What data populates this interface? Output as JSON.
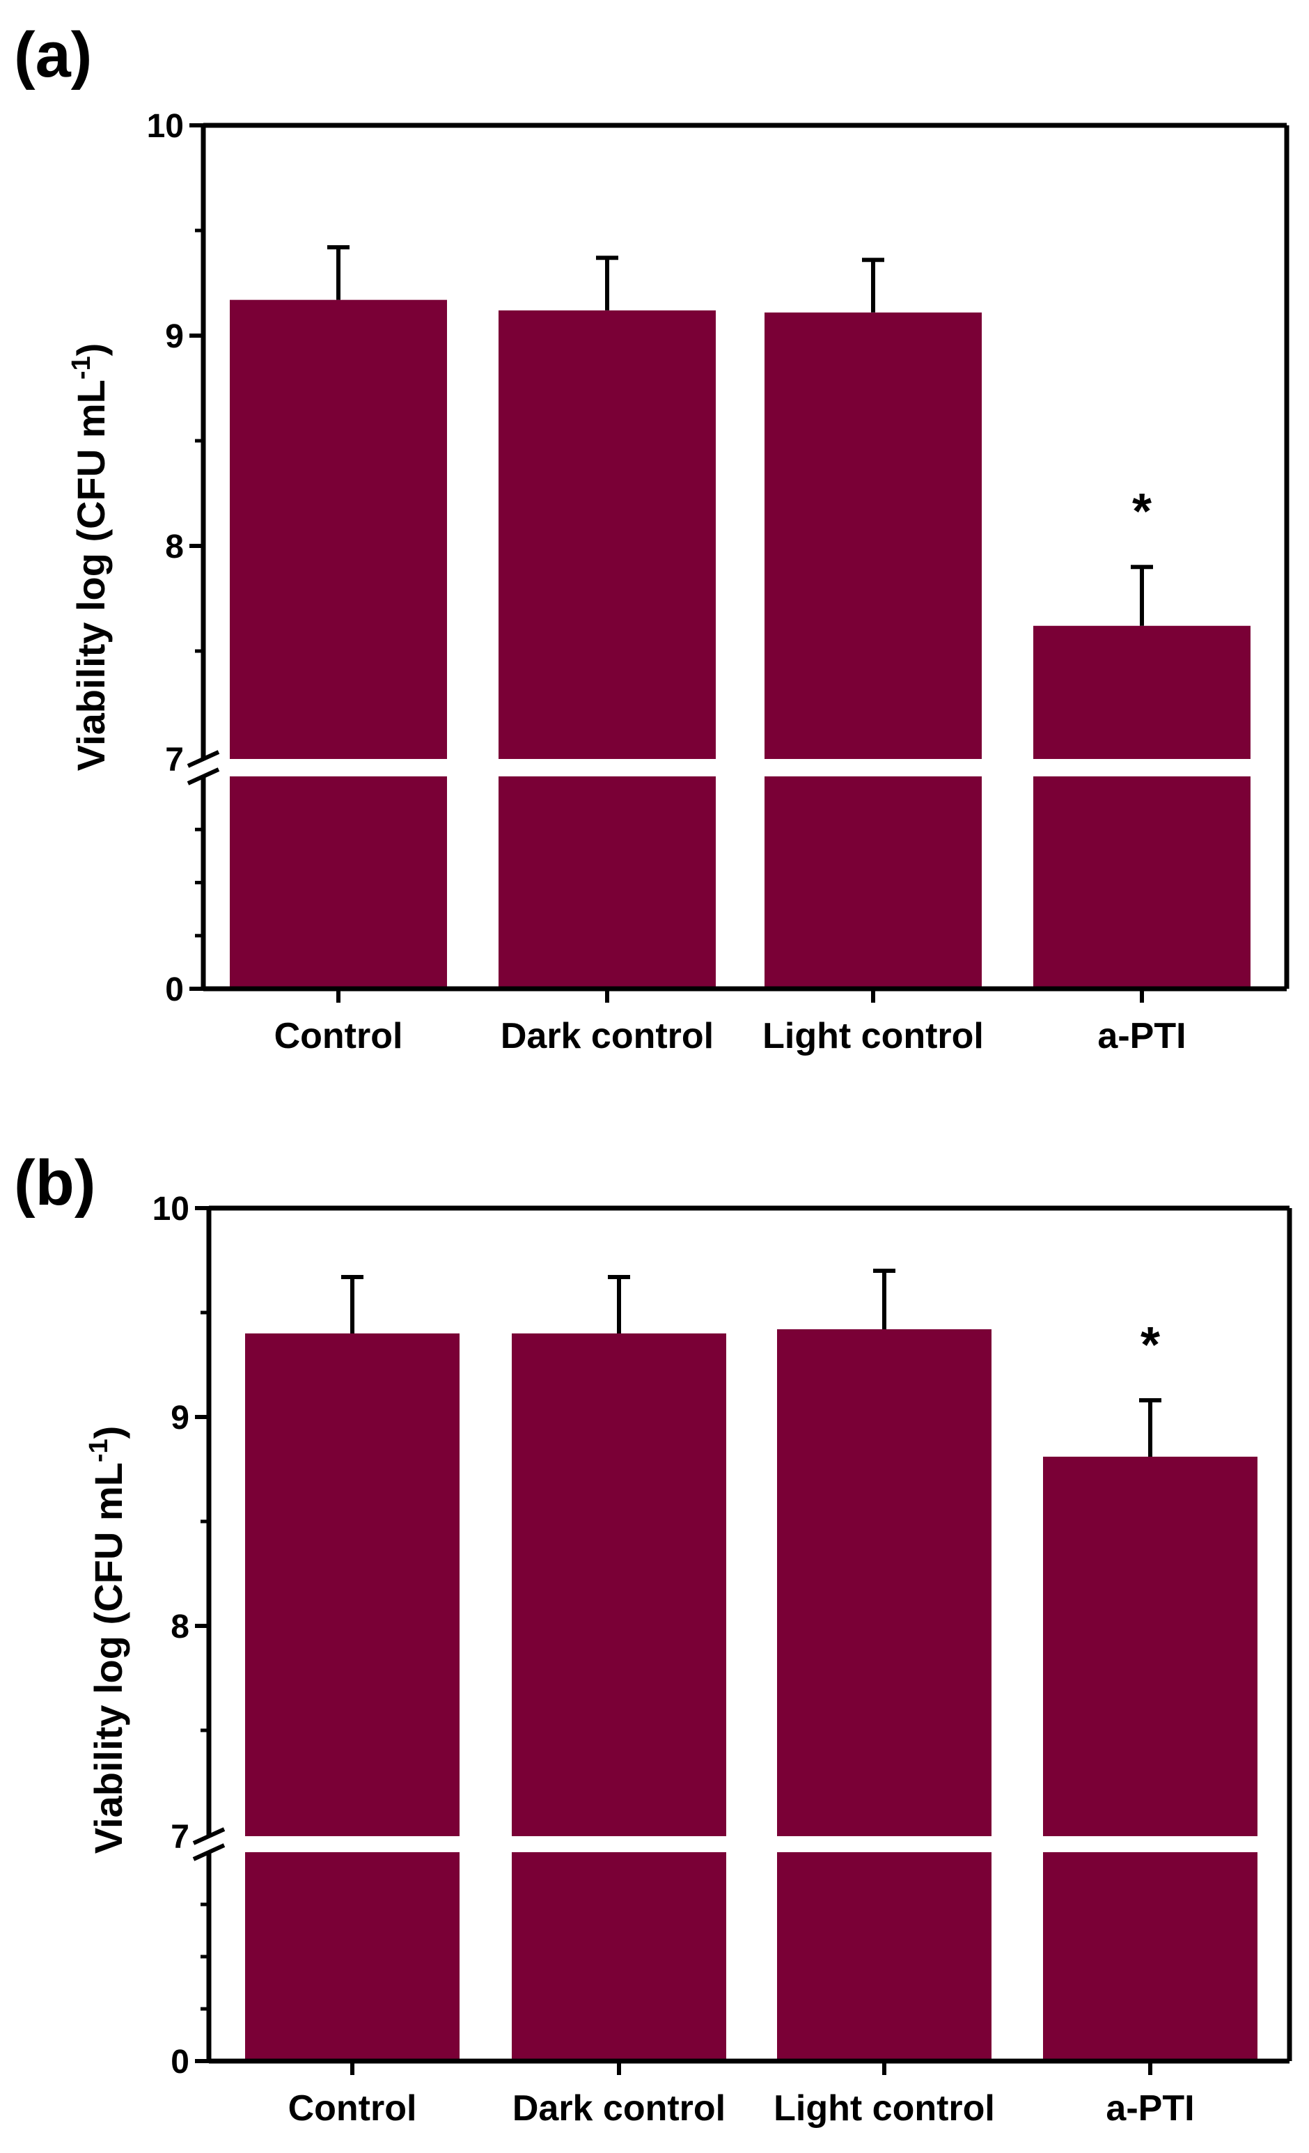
{
  "colors": {
    "bar": "#7a0036",
    "axis": "#000000",
    "background": "#ffffff"
  },
  "chart_data": [
    {
      "type": "bar",
      "panel_label": "(a)",
      "title": "",
      "xlabel": "",
      "ylabel": "Viability log (CFU mL",
      "ylabel_sup": "-1",
      "ylabel_close": ")",
      "categories": [
        "Control",
        "Dark control",
        "Light control",
        "a-PTI"
      ],
      "values": [
        9.17,
        9.12,
        9.11,
        7.62
      ],
      "errors": [
        0.25,
        0.25,
        0.25,
        0.28
      ],
      "significance": [
        "",
        "",
        "",
        "*"
      ],
      "axis_break_at": 7,
      "ylim": [
        0,
        10
      ],
      "yticks": [
        0,
        7,
        8,
        9,
        10
      ],
      "ytick_labels": [
        "0",
        "7",
        "8",
        "9",
        "10"
      ]
    },
    {
      "type": "bar",
      "panel_label": "(b)",
      "title": "",
      "xlabel": "",
      "ylabel": "Viability log (CFU mL",
      "ylabel_sup": "-1",
      "ylabel_close": ")",
      "categories": [
        "Control",
        "Dark control",
        "Light control",
        "a-PTI"
      ],
      "values": [
        9.4,
        9.4,
        9.42,
        8.81
      ],
      "errors": [
        0.27,
        0.27,
        0.28,
        0.27
      ],
      "significance": [
        "",
        "",
        "",
        "*"
      ],
      "axis_break_at": 7,
      "ylim": [
        0,
        10
      ],
      "yticks": [
        0,
        7,
        8,
        9,
        10
      ],
      "ytick_labels": [
        "0",
        "7",
        "8",
        "9",
        "10"
      ]
    }
  ]
}
